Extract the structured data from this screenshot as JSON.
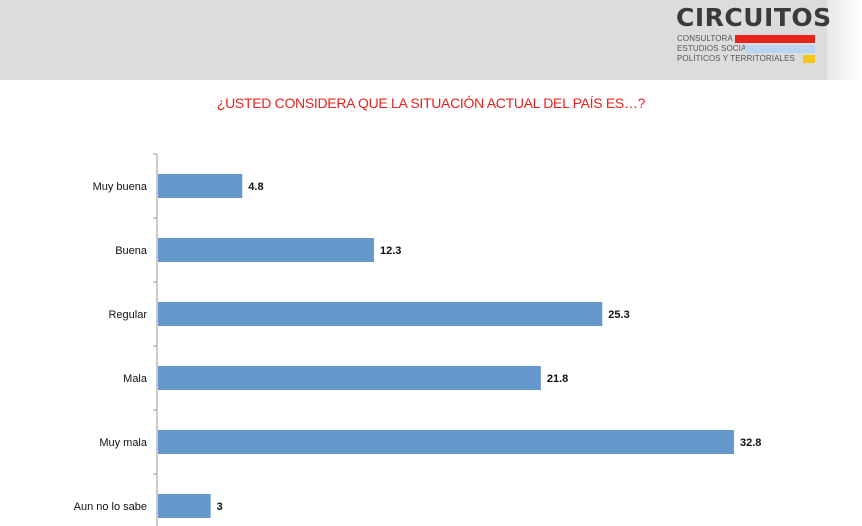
{
  "logo": {
    "name": "CIRCUITOS",
    "line1": "CONSULTORA DE",
    "line2": "ESTUDIOS SOCIALES,",
    "line3": "POLÍTICOS Y TERRITORIALES",
    "colors": {
      "red": "#e8231d",
      "blue": "#b9d5ef",
      "yellow": "#f6c518"
    }
  },
  "chart_data": {
    "type": "bar",
    "orientation": "horizontal",
    "title": "¿USTED CONSIDERA QUE LA SITUACIÓN ACTUAL DEL PAÍS ES…?",
    "categories": [
      "Muy buena",
      "Buena",
      "Regular",
      "Mala",
      "Muy mala",
      "Aun no lo sabe"
    ],
    "values": [
      4.8,
      12.3,
      25.3,
      21.8,
      32.8,
      3
    ],
    "value_labels": [
      "4.8",
      "12.3",
      "25.3",
      "21.8",
      "32.8",
      "3"
    ],
    "xlim": [
      0,
      32.8
    ],
    "bar_color": "#6598cb",
    "title_color": "#e8231d",
    "grid": false,
    "legend": "none"
  }
}
